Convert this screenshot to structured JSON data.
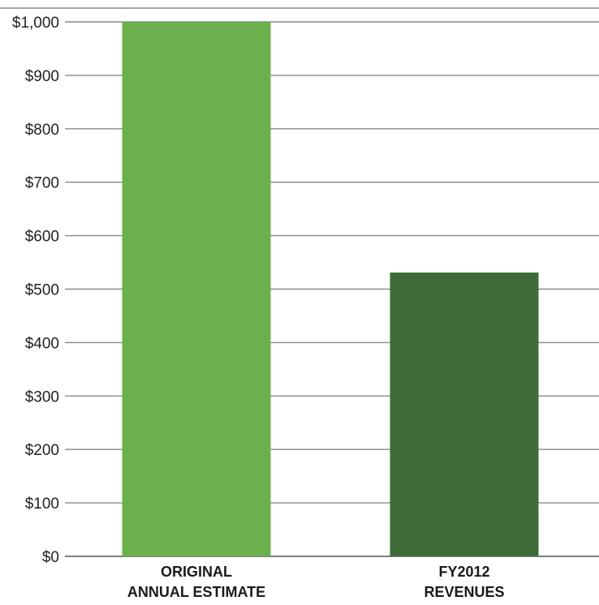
{
  "chart_data": {
    "type": "bar",
    "title": "",
    "xlabel": "",
    "ylabel": "",
    "ylim": [
      0,
      1000
    ],
    "y_ticks": [
      0,
      100,
      200,
      300,
      400,
      500,
      600,
      700,
      800,
      900,
      1000
    ],
    "y_tick_labels": [
      "$0",
      "$100",
      "$200",
      "$300",
      "$400",
      "$500",
      "$600",
      "$700",
      "$800",
      "$900",
      "$1,000"
    ],
    "grid": true,
    "legend": "none",
    "categories": [
      [
        "ORIGINAL",
        "ANNUAL ESTIMATE"
      ],
      [
        "FY2012",
        "REVENUES"
      ]
    ],
    "values": [
      1000,
      531
    ],
    "colors": [
      "#6ab04c",
      "#3c6b37"
    ]
  }
}
